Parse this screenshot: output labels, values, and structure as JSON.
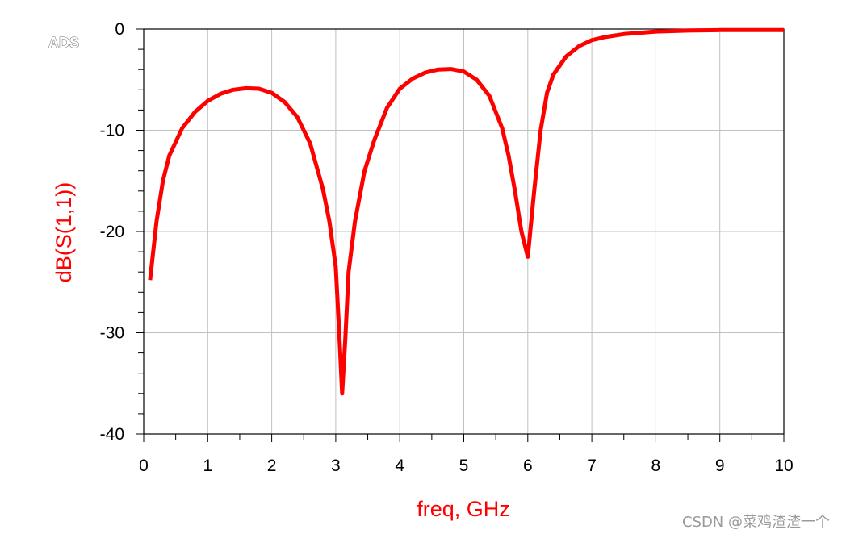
{
  "logo": "ADS",
  "watermark": "CSDN @菜鸡渣渣一个",
  "chart_data": {
    "type": "line",
    "title": "",
    "xlabel": "freq, GHz",
    "ylabel": "dB(S(1,1))",
    "xlim": [
      0,
      10
    ],
    "ylim": [
      -40,
      0
    ],
    "xticks": [
      "0",
      "1",
      "2",
      "3",
      "4",
      "5",
      "6",
      "7",
      "8",
      "9",
      "10"
    ],
    "yticks": [
      "0",
      "-10",
      "-20",
      "-30",
      "-40"
    ],
    "grid": true,
    "colors": {
      "series": "#ff0000",
      "labels": "#ff0000",
      "grid": "#c0c0c0",
      "axis": "#000000"
    },
    "series": [
      {
        "x": [
          0.1,
          0.2,
          0.3,
          0.4,
          0.6,
          0.8,
          1.0,
          1.2,
          1.4,
          1.6,
          1.8,
          2.0,
          2.2,
          2.4,
          2.6,
          2.8,
          2.9,
          3.0,
          3.05,
          3.1,
          3.15,
          3.2,
          3.3,
          3.45,
          3.6,
          3.8,
          4.0,
          4.2,
          4.4,
          4.6,
          4.8,
          5.0,
          5.2,
          5.4,
          5.6,
          5.7,
          5.8,
          5.9,
          6.0,
          6.1,
          6.2,
          6.3,
          6.4,
          6.6,
          6.8,
          7.0,
          7.2,
          7.5,
          8.0,
          8.5,
          9.0,
          9.5,
          10.0
        ],
        "y": [
          -24.8,
          -19,
          -15,
          -12.5,
          -9.8,
          -8.2,
          -7.1,
          -6.4,
          -6.0,
          -5.85,
          -5.9,
          -6.3,
          -7.2,
          -8.7,
          -11.3,
          -15.8,
          -19.0,
          -23.5,
          -29.5,
          -36.0,
          -30.5,
          -24.0,
          -19.0,
          -14.0,
          -11.0,
          -7.8,
          -5.9,
          -4.9,
          -4.3,
          -4.0,
          -3.95,
          -4.2,
          -5.0,
          -6.6,
          -9.8,
          -12.5,
          -16.0,
          -20.0,
          -22.5,
          -16.0,
          -10.0,
          -6.3,
          -4.5,
          -2.7,
          -1.7,
          -1.1,
          -0.8,
          -0.5,
          -0.25,
          -0.15,
          -0.1,
          -0.1,
          -0.1
        ]
      }
    ]
  }
}
